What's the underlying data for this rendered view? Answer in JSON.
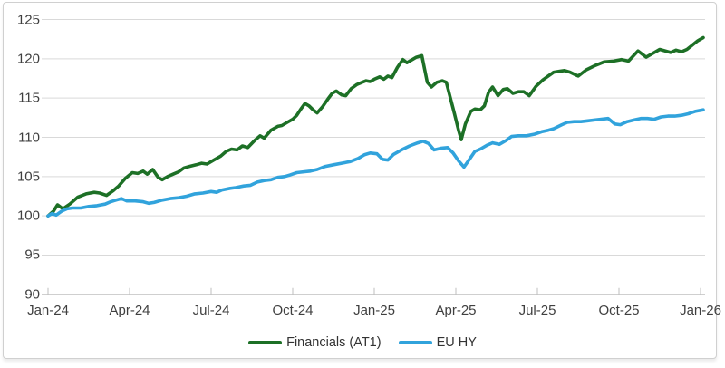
{
  "colors": {
    "financials_green": "#1d7026",
    "eu_hy_blue": "#31a3dc",
    "gridline": "#d9d9d9",
    "axis_line": "#bfbfbf",
    "tick_mark": "#bfbfbf",
    "axis_label_text": "#3f3f3f",
    "legend_text": "#333333",
    "card_border": "#d0d0d0",
    "background": "#ffffff"
  },
  "legend": {
    "financials_label": "Financials (AT1)",
    "eu_hy_label": "EU HY"
  },
  "chart_data": {
    "type": "line",
    "title": "",
    "xlabel": "",
    "ylabel": "",
    "grid": "horizontal",
    "legend_position": "bottom-center",
    "x_axis": {
      "tick_labels": [
        "Jan-24",
        "Apr-24",
        "Jul-24",
        "Oct-24",
        "Jan-25",
        "Apr-25",
        "Jul-25",
        "Oct-25",
        "Jan-26"
      ],
      "tick_positions_months": [
        0,
        3,
        6,
        9,
        12,
        15,
        18,
        21,
        24
      ],
      "range_months": [
        0,
        24.2
      ],
      "tick_style": "inside"
    },
    "y_axis": {
      "ticks": [
        90,
        95,
        100,
        105,
        110,
        115,
        120,
        125
      ],
      "tick_labels": [
        "90",
        "95",
        "100",
        "105",
        "110",
        "115",
        "120",
        "125"
      ],
      "range": [
        90,
        125
      ],
      "base_index": 100
    },
    "series": [
      {
        "name": "Financials (AT1)",
        "color": "#1d7026",
        "points": [
          [
            0,
            100
          ],
          [
            0.2,
            100.6
          ],
          [
            0.35,
            101.4
          ],
          [
            0.55,
            100.9
          ],
          [
            0.8,
            101.5
          ],
          [
            1.1,
            102.4
          ],
          [
            1.4,
            102.8
          ],
          [
            1.7,
            103.0
          ],
          [
            1.9,
            102.9
          ],
          [
            2.15,
            102.6
          ],
          [
            2.4,
            103.2
          ],
          [
            2.6,
            103.8
          ],
          [
            2.85,
            104.8
          ],
          [
            3.1,
            105.5
          ],
          [
            3.3,
            105.4
          ],
          [
            3.5,
            105.7
          ],
          [
            3.65,
            105.3
          ],
          [
            3.85,
            105.9
          ],
          [
            4.05,
            104.9
          ],
          [
            4.2,
            104.6
          ],
          [
            4.4,
            105.0
          ],
          [
            4.6,
            105.3
          ],
          [
            4.8,
            105.6
          ],
          [
            5.0,
            106.1
          ],
          [
            5.2,
            106.3
          ],
          [
            5.45,
            106.5
          ],
          [
            5.65,
            106.7
          ],
          [
            5.85,
            106.6
          ],
          [
            6.1,
            107.1
          ],
          [
            6.35,
            107.6
          ],
          [
            6.55,
            108.2
          ],
          [
            6.75,
            108.5
          ],
          [
            6.95,
            108.4
          ],
          [
            7.15,
            108.9
          ],
          [
            7.35,
            108.7
          ],
          [
            7.6,
            109.6
          ],
          [
            7.8,
            110.2
          ],
          [
            7.95,
            109.9
          ],
          [
            8.2,
            110.9
          ],
          [
            8.45,
            111.4
          ],
          [
            8.6,
            111.5
          ],
          [
            8.8,
            111.9
          ],
          [
            9.0,
            112.3
          ],
          [
            9.15,
            112.8
          ],
          [
            9.3,
            113.6
          ],
          [
            9.45,
            114.3
          ],
          [
            9.6,
            114.0
          ],
          [
            9.75,
            113.5
          ],
          [
            9.9,
            113.1
          ],
          [
            10.1,
            113.9
          ],
          [
            10.3,
            114.9
          ],
          [
            10.45,
            115.6
          ],
          [
            10.6,
            115.9
          ],
          [
            10.8,
            115.4
          ],
          [
            10.95,
            115.3
          ],
          [
            11.15,
            116.2
          ],
          [
            11.35,
            116.7
          ],
          [
            11.55,
            117.0
          ],
          [
            11.7,
            117.2
          ],
          [
            11.85,
            117.1
          ],
          [
            12.0,
            117.4
          ],
          [
            12.2,
            117.7
          ],
          [
            12.35,
            117.4
          ],
          [
            12.5,
            117.8
          ],
          [
            12.65,
            117.6
          ],
          [
            12.85,
            118.9
          ],
          [
            13.05,
            119.9
          ],
          [
            13.2,
            119.5
          ],
          [
            13.4,
            119.9
          ],
          [
            13.55,
            120.2
          ],
          [
            13.75,
            120.4
          ],
          [
            13.95,
            117.0
          ],
          [
            14.1,
            116.4
          ],
          [
            14.3,
            117.0
          ],
          [
            14.5,
            117.2
          ],
          [
            14.65,
            117.0
          ],
          [
            14.8,
            115.0
          ],
          [
            14.95,
            113.0
          ],
          [
            15.1,
            110.9
          ],
          [
            15.2,
            109.7
          ],
          [
            15.35,
            111.7
          ],
          [
            15.55,
            113.3
          ],
          [
            15.7,
            113.6
          ],
          [
            15.9,
            113.5
          ],
          [
            16.05,
            114.0
          ],
          [
            16.2,
            115.7
          ],
          [
            16.35,
            116.4
          ],
          [
            16.55,
            115.3
          ],
          [
            16.75,
            116.1
          ],
          [
            16.9,
            116.2
          ],
          [
            17.1,
            115.6
          ],
          [
            17.3,
            115.8
          ],
          [
            17.5,
            115.8
          ],
          [
            17.7,
            115.3
          ],
          [
            17.95,
            116.5
          ],
          [
            18.2,
            117.3
          ],
          [
            18.4,
            117.8
          ],
          [
            18.6,
            118.3
          ],
          [
            18.8,
            118.4
          ],
          [
            19.0,
            118.5
          ],
          [
            19.2,
            118.3
          ],
          [
            19.5,
            117.8
          ],
          [
            19.8,
            118.6
          ],
          [
            20.1,
            119.1
          ],
          [
            20.45,
            119.6
          ],
          [
            20.8,
            119.7
          ],
          [
            21.1,
            119.9
          ],
          [
            21.35,
            119.7
          ],
          [
            21.7,
            121.0
          ],
          [
            22.0,
            120.2
          ],
          [
            22.3,
            120.8
          ],
          [
            22.5,
            121.2
          ],
          [
            22.9,
            120.8
          ],
          [
            23.1,
            121.1
          ],
          [
            23.3,
            120.9
          ],
          [
            23.5,
            121.2
          ],
          [
            23.9,
            122.3
          ],
          [
            24.1,
            122.7
          ]
        ]
      },
      {
        "name": "EU HY",
        "color": "#31a3dc",
        "points": [
          [
            0,
            100
          ],
          [
            0.15,
            100.3
          ],
          [
            0.3,
            100.1
          ],
          [
            0.5,
            100.6
          ],
          [
            0.7,
            100.9
          ],
          [
            0.9,
            101.0
          ],
          [
            1.2,
            101.0
          ],
          [
            1.5,
            101.2
          ],
          [
            1.8,
            101.3
          ],
          [
            2.1,
            101.5
          ],
          [
            2.3,
            101.8
          ],
          [
            2.5,
            102.0
          ],
          [
            2.7,
            102.2
          ],
          [
            2.9,
            101.9
          ],
          [
            3.2,
            101.9
          ],
          [
            3.5,
            101.8
          ],
          [
            3.7,
            101.6
          ],
          [
            3.9,
            101.7
          ],
          [
            4.2,
            102.0
          ],
          [
            4.5,
            102.2
          ],
          [
            4.8,
            102.3
          ],
          [
            5.1,
            102.5
          ],
          [
            5.4,
            102.8
          ],
          [
            5.7,
            102.9
          ],
          [
            6.0,
            103.1
          ],
          [
            6.2,
            103.0
          ],
          [
            6.4,
            103.3
          ],
          [
            6.7,
            103.5
          ],
          [
            6.9,
            103.6
          ],
          [
            7.2,
            103.8
          ],
          [
            7.45,
            103.9
          ],
          [
            7.7,
            104.3
          ],
          [
            7.95,
            104.5
          ],
          [
            8.2,
            104.6
          ],
          [
            8.45,
            104.9
          ],
          [
            8.7,
            105.0
          ],
          [
            8.9,
            105.2
          ],
          [
            9.15,
            105.5
          ],
          [
            9.4,
            105.6
          ],
          [
            9.65,
            105.7
          ],
          [
            9.9,
            105.9
          ],
          [
            10.2,
            106.3
          ],
          [
            10.5,
            106.5
          ],
          [
            10.8,
            106.7
          ],
          [
            11.1,
            106.9
          ],
          [
            11.4,
            107.3
          ],
          [
            11.65,
            107.8
          ],
          [
            11.85,
            108.0
          ],
          [
            12.1,
            107.9
          ],
          [
            12.3,
            107.2
          ],
          [
            12.5,
            107.1
          ],
          [
            12.7,
            107.8
          ],
          [
            13.0,
            108.4
          ],
          [
            13.3,
            108.9
          ],
          [
            13.6,
            109.3
          ],
          [
            13.8,
            109.5
          ],
          [
            14.0,
            109.2
          ],
          [
            14.2,
            108.4
          ],
          [
            14.45,
            108.6
          ],
          [
            14.7,
            108.7
          ],
          [
            14.9,
            108.0
          ],
          [
            15.1,
            107.0
          ],
          [
            15.3,
            106.2
          ],
          [
            15.5,
            107.2
          ],
          [
            15.7,
            108.2
          ],
          [
            15.9,
            108.5
          ],
          [
            16.15,
            109.0
          ],
          [
            16.35,
            109.3
          ],
          [
            16.6,
            109.1
          ],
          [
            16.85,
            109.6
          ],
          [
            17.05,
            110.1
          ],
          [
            17.3,
            110.2
          ],
          [
            17.6,
            110.2
          ],
          [
            17.9,
            110.4
          ],
          [
            18.15,
            110.7
          ],
          [
            18.4,
            110.9
          ],
          [
            18.6,
            111.1
          ],
          [
            18.9,
            111.6
          ],
          [
            19.1,
            111.9
          ],
          [
            19.35,
            112.0
          ],
          [
            19.6,
            112.0
          ],
          [
            19.85,
            112.1
          ],
          [
            20.1,
            112.2
          ],
          [
            20.35,
            112.3
          ],
          [
            20.6,
            112.4
          ],
          [
            20.85,
            111.7
          ],
          [
            21.05,
            111.6
          ],
          [
            21.3,
            112.0
          ],
          [
            21.55,
            112.2
          ],
          [
            21.8,
            112.4
          ],
          [
            22.05,
            112.4
          ],
          [
            22.3,
            112.3
          ],
          [
            22.55,
            112.6
          ],
          [
            22.8,
            112.7
          ],
          [
            23.05,
            112.7
          ],
          [
            23.3,
            112.8
          ],
          [
            23.55,
            113.0
          ],
          [
            23.8,
            113.3
          ],
          [
            24.1,
            113.5
          ]
        ]
      }
    ]
  }
}
